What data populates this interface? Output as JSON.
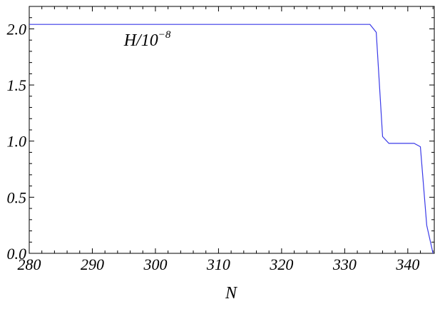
{
  "chart_data": {
    "type": "line",
    "title": "",
    "xlabel": "N",
    "ylabel": "",
    "xlim": [
      280,
      344.2
    ],
    "ylim": [
      0,
      2.2
    ],
    "x_ticks": [
      280,
      290,
      300,
      310,
      320,
      330,
      340
    ],
    "x_tick_labels": [
      "280",
      "290",
      "300",
      "310",
      "320",
      "330",
      "340"
    ],
    "y_ticks": [
      0.0,
      0.5,
      1.0,
      1.5,
      2.0
    ],
    "y_tick_labels": [
      "0.0",
      "0.5",
      "1.0",
      "1.5",
      "2.0"
    ],
    "grid": false,
    "annotation": {
      "base": "H/10",
      "exponent": "−8",
      "x": 295,
      "y": 1.85
    },
    "series": [
      {
        "color": "#3a3ae8",
        "points": [
          [
            280,
            2.04
          ],
          [
            300,
            2.04
          ],
          [
            320,
            2.04
          ],
          [
            330,
            2.04
          ],
          [
            334,
            2.04
          ],
          [
            335,
            1.97
          ],
          [
            336,
            1.04
          ],
          [
            337,
            0.98
          ],
          [
            338,
            0.98
          ],
          [
            339,
            0.98
          ],
          [
            340,
            0.98
          ],
          [
            341,
            0.98
          ],
          [
            342,
            0.95
          ],
          [
            343,
            0.25
          ],
          [
            344,
            0.0
          ]
        ]
      }
    ]
  }
}
